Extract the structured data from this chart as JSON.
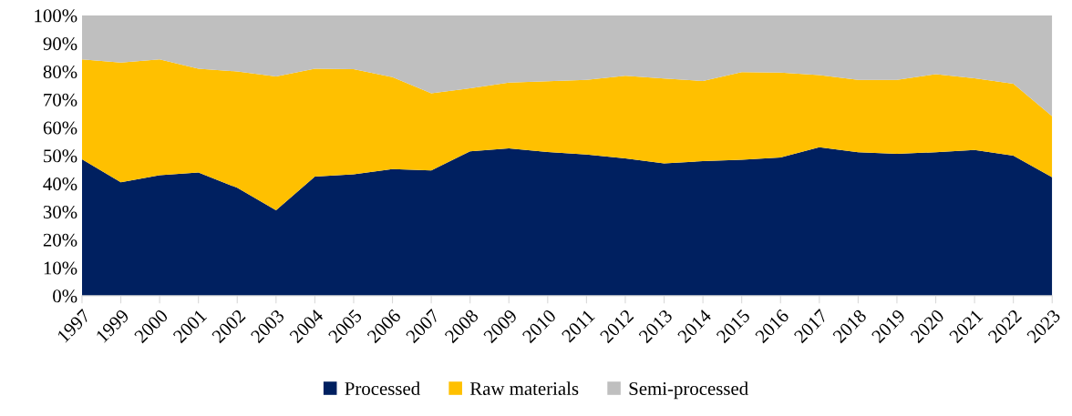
{
  "chart_data": {
    "type": "area",
    "stacked": true,
    "categories": [
      "1997",
      "1999",
      "2000",
      "2001",
      "2002",
      "2003",
      "2004",
      "2005",
      "2006",
      "2007",
      "2008",
      "2009",
      "2010",
      "2011",
      "2012",
      "2013",
      "2014",
      "2015",
      "2016",
      "2017",
      "2018",
      "2019",
      "2020",
      "2021",
      "2022",
      "2023"
    ],
    "series": [
      {
        "name": "Processed",
        "color": "#002060",
        "values": [
          48.7,
          40.5,
          43,
          44,
          38.5,
          30.5,
          42.5,
          43.3,
          45.2,
          44.7,
          51.5,
          52.6,
          51.3,
          50.4,
          49,
          47.2,
          48,
          48.5,
          49.3,
          53,
          51.2,
          50.6,
          51.2,
          52,
          50,
          42.3
        ]
      },
      {
        "name": "Raw materials",
        "color": "#ffc000",
        "values": [
          35.6,
          42.7,
          41.3,
          37,
          41.5,
          47.7,
          38.5,
          37.5,
          32.8,
          27.5,
          22.5,
          23.4,
          25.2,
          26.6,
          29.5,
          30.3,
          28.6,
          31.3,
          30.3,
          25.7,
          25.8,
          26.4,
          27.8,
          25.6,
          25.6,
          21.7
        ]
      },
      {
        "name": "Semi-processed",
        "color": "#bfbfbf",
        "values": [
          15.7,
          16.8,
          15.7,
          19,
          20,
          21.8,
          19,
          19.2,
          22,
          27.8,
          26,
          24,
          23.5,
          23,
          21.5,
          22.5,
          23.4,
          20.2,
          20.4,
          21.3,
          23,
          23,
          21,
          22.4,
          24.4,
          36
        ]
      }
    ],
    "ylim": [
      0,
      100
    ],
    "yticks": [
      {
        "value": 0,
        "label": "0%"
      },
      {
        "value": 10,
        "label": "10%"
      },
      {
        "value": 20,
        "label": "20%"
      },
      {
        "value": 30,
        "label": "30%"
      },
      {
        "value": 40,
        "label": "40%"
      },
      {
        "value": 50,
        "label": "50%"
      },
      {
        "value": 60,
        "label": "60%"
      },
      {
        "value": 70,
        "label": "70%"
      },
      {
        "value": 80,
        "label": "80%"
      },
      {
        "value": 90,
        "label": "90%"
      },
      {
        "value": 100,
        "label": "100%"
      }
    ],
    "grid": false,
    "legend": "bottom"
  }
}
